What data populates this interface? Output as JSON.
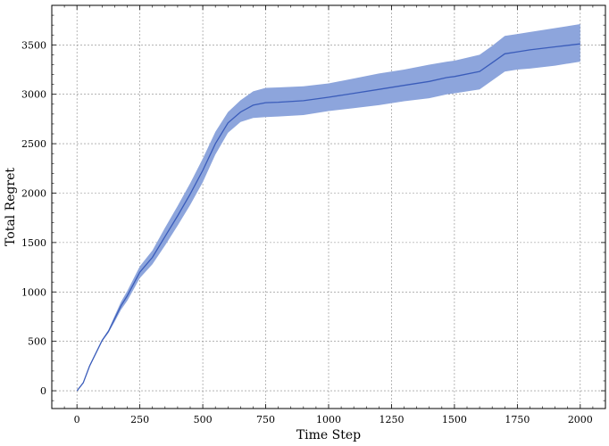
{
  "chart_data": {
    "type": "line",
    "xlabel": "Time Step",
    "ylabel": "Total Regret",
    "xlim": [
      -100,
      2100
    ],
    "ylim": [
      -180,
      3900
    ],
    "xticks": [
      0,
      250,
      500,
      750,
      1000,
      1250,
      1500,
      1750,
      2000
    ],
    "yticks": [
      0,
      500,
      1000,
      1500,
      2000,
      2500,
      3000,
      3500
    ],
    "grid": true,
    "colors": {
      "line": "#3a5cba",
      "band": "#8da5dc"
    },
    "series": [
      {
        "x": [
          0,
          25,
          50,
          100,
          125,
          150,
          175,
          200,
          250,
          300,
          350,
          400,
          450,
          500,
          550,
          600,
          650,
          700,
          750,
          800,
          900,
          1000,
          1100,
          1200,
          1300,
          1400,
          1470,
          1500,
          1600,
          1650,
          1700,
          1750,
          1800,
          1900,
          2000
        ],
        "y": [
          0,
          80,
          250,
          510,
          600,
          730,
          860,
          960,
          1200,
          1350,
          1560,
          1770,
          1990,
          2230,
          2500,
          2710,
          2820,
          2890,
          2915,
          2920,
          2935,
          2970,
          3010,
          3050,
          3090,
          3130,
          3170,
          3180,
          3230,
          3320,
          3410,
          3430,
          3450,
          3480,
          3510
        ],
        "lower": [
          0,
          75,
          240,
          500,
          585,
          700,
          820,
          910,
          1140,
          1280,
          1470,
          1670,
          1880,
          2110,
          2390,
          2610,
          2720,
          2760,
          2770,
          2775,
          2790,
          2830,
          2860,
          2890,
          2930,
          2960,
          3000,
          3010,
          3050,
          3140,
          3230,
          3250,
          3260,
          3290,
          3330
        ],
        "upper": [
          0,
          85,
          260,
          520,
          615,
          760,
          900,
          1010,
          1260,
          1420,
          1650,
          1870,
          2100,
          2350,
          2620,
          2820,
          2940,
          3030,
          3065,
          3070,
          3080,
          3110,
          3160,
          3210,
          3250,
          3300,
          3330,
          3340,
          3400,
          3490,
          3590,
          3610,
          3630,
          3670,
          3710
        ]
      }
    ]
  }
}
